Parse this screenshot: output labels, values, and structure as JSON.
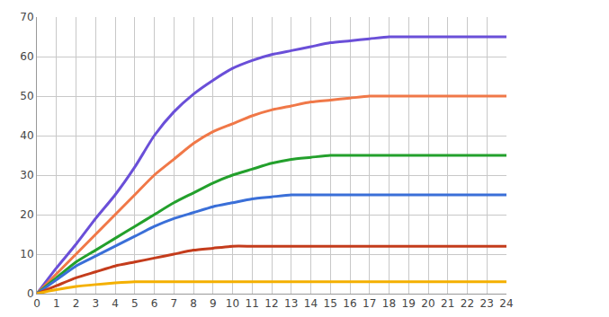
{
  "chart_data": {
    "type": "line",
    "x": [
      0,
      1,
      2,
      3,
      4,
      5,
      6,
      7,
      8,
      9,
      10,
      11,
      12,
      13,
      14,
      15,
      16,
      17,
      18,
      19,
      20,
      21,
      22,
      23,
      24
    ],
    "series": [
      {
        "color": "#6a4fd8",
        "values": [
          0,
          6.5,
          12.5,
          19,
          25,
          32,
          40,
          46,
          50.5,
          54,
          57,
          59,
          60.5,
          61.5,
          62.5,
          63.5,
          64,
          64.5,
          65,
          65,
          65,
          65,
          65,
          65,
          65
        ]
      },
      {
        "color": "#f07848",
        "values": [
          0,
          5,
          10,
          15,
          20,
          25,
          30,
          34,
          38,
          41,
          43,
          45,
          46.5,
          47.5,
          48.5,
          49,
          49.5,
          50,
          50,
          50,
          50,
          50,
          50,
          50,
          50
        ]
      },
      {
        "color": "#23a02c",
        "values": [
          0,
          4,
          8,
          11,
          14,
          17,
          20,
          23,
          25.5,
          28,
          30,
          31.5,
          33,
          34,
          34.5,
          35,
          35,
          35,
          35,
          35,
          35,
          35,
          35,
          35,
          35
        ]
      },
      {
        "color": "#3a6fd8",
        "values": [
          0,
          3.5,
          7,
          9.5,
          12,
          14.5,
          17,
          19,
          20.5,
          22,
          23,
          24,
          24.5,
          25,
          25,
          25,
          25,
          25,
          25,
          25,
          25,
          25,
          25,
          25,
          25
        ]
      },
      {
        "color": "#c43c1c",
        "values": [
          0,
          2,
          4,
          5.5,
          7,
          8,
          9,
          10,
          11,
          11.5,
          12,
          12,
          12,
          12,
          12,
          12,
          12,
          12,
          12,
          12,
          12,
          12,
          12,
          12,
          12
        ]
      },
      {
        "color": "#f4b000",
        "values": [
          0,
          1,
          1.8,
          2.3,
          2.7,
          3,
          3,
          3,
          3,
          3,
          3,
          3,
          3,
          3,
          3,
          3,
          3,
          3,
          3,
          3,
          3,
          3,
          3,
          3,
          3
        ]
      }
    ],
    "xlim": [
      0,
      24
    ],
    "ylim": [
      0,
      70
    ],
    "xticks": [
      0,
      1,
      2,
      3,
      4,
      5,
      6,
      7,
      8,
      9,
      10,
      11,
      12,
      13,
      14,
      15,
      16,
      17,
      18,
      19,
      20,
      21,
      22,
      23,
      24
    ],
    "yticks": [
      0,
      10,
      20,
      30,
      40,
      50,
      60,
      70
    ],
    "grid": true
  }
}
